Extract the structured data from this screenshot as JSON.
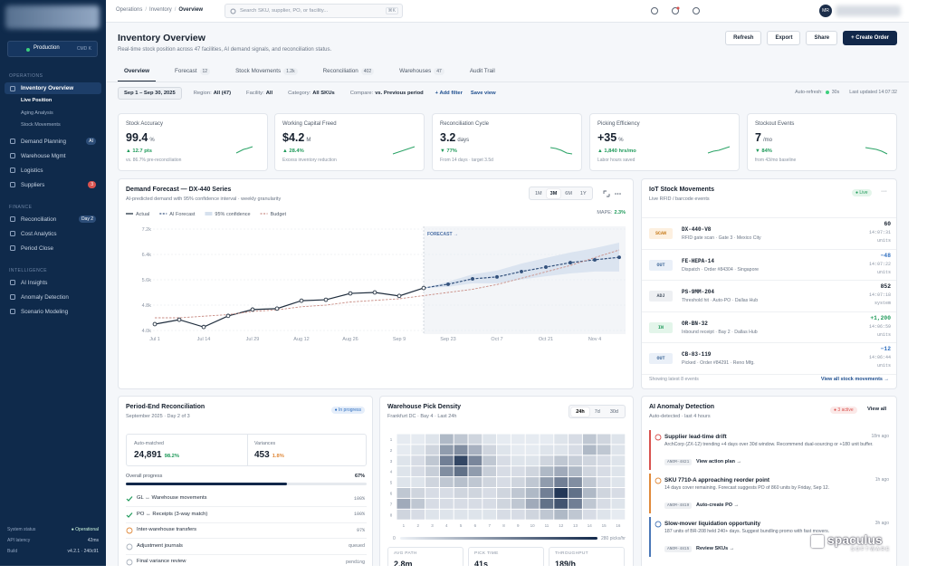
{
  "sidebar": {
    "env": "Production",
    "shortcut": "CMD K",
    "sections": [
      {
        "title": "OPERATIONS",
        "items": [
          {
            "label": "Inventory Overview",
            "sub": [
              "Live Position",
              "Aging Analysis",
              "Stock Movements"
            ]
          },
          {
            "label": "Demand Planning",
            "badge": "AI"
          },
          {
            "label": "Warehouse Mgmt"
          },
          {
            "label": "Logistics"
          },
          {
            "label": "Suppliers",
            "badge": 3
          }
        ]
      },
      {
        "title": "FINANCE",
        "items": [
          {
            "label": "Reconciliation",
            "badge": "Day 2"
          },
          {
            "label": "Cost Analytics"
          },
          {
            "label": "Period Close"
          }
        ]
      },
      {
        "title": "INTELLIGENCE",
        "items": [
          {
            "label": "AI Insights"
          },
          {
            "label": "Anomaly Detection"
          },
          {
            "label": "Scenario Modeling"
          }
        ]
      }
    ],
    "status": [
      [
        "System status",
        "● Operational"
      ],
      [
        "API latency",
        "42ms"
      ],
      [
        "Build",
        "v4.2.1 · 240c91"
      ]
    ]
  },
  "topbar": {
    "breadcrumb": [
      "Operations",
      "Inventory",
      "Overview"
    ],
    "separator": "/",
    "search": "Search SKU, supplier, PO, or facility...",
    "search_shortcut": "⌘K",
    "avatar": "MR"
  },
  "header": {
    "title": "Inventory Overview",
    "subtitle": "Real-time stock position across 47 facilities, AI demand signals, and reconciliation status.",
    "buttons": [
      "Refresh",
      "Export",
      "Share",
      "+ Create Order"
    ]
  },
  "tabs": [
    {
      "label": "Overview"
    },
    {
      "label": "Forecast",
      "count": 12
    },
    {
      "label": "Stock Movements",
      "count": "1.2k"
    },
    {
      "label": "Reconciliation",
      "count": 402
    },
    {
      "label": "Warehouses",
      "count": 47
    },
    {
      "label": "Audit Trail"
    }
  ],
  "filters": {
    "date": "Sep 1 – Sep 30, 2025",
    "chips": [
      [
        "Region:",
        "All (47)"
      ],
      [
        "Facility:",
        "All"
      ],
      [
        "Category:",
        "All SKUs"
      ],
      [
        "Compare:",
        "vs. Previous period"
      ]
    ],
    "add": "+ Add filter",
    "save": "Save view",
    "auto_refresh": "Auto-refresh:",
    "refresh_interval": "30s",
    "updated": "Last updated 14:07:32"
  },
  "kpis": [
    {
      "label": "Stock Accuracy",
      "value": "99.4",
      "unit": "%",
      "delta": "▲ 12.7 pts",
      "note": "vs. 86.7% pre-reconciliation"
    },
    {
      "label": "Working Capital Freed",
      "value": "$4.2",
      "unit": "M",
      "delta": "▲ 28.4%",
      "note": "Excess inventory reduction"
    },
    {
      "label": "Reconciliation Cycle",
      "value": "3.2",
      "unit": "days",
      "delta": "▼ 77%",
      "note": "From 14 days · target 3.5d"
    },
    {
      "label": "Picking Efficiency",
      "value": "+35",
      "unit": "%",
      "delta": "▲ 1,840 hrs/mo",
      "note": "Labor hours saved"
    },
    {
      "label": "Stockout Events",
      "value": "7",
      "unit": "/mo",
      "delta": "▼ 84%",
      "note": "from 43/mo baseline"
    }
  ],
  "chart_data": [
    {
      "type": "line",
      "title": "Demand Forecast — DX-440 Series",
      "subtitle": "AI-predicted demand with 95% confidence interval · weekly granularity",
      "ranges": [
        "1M",
        "3M",
        "6M",
        "1Y"
      ],
      "active_range": "3M",
      "metric_label": "MAPE:",
      "metric_value": "2.3%",
      "forecast_label": "FORECAST →",
      "categories": [
        "Jul 1",
        null,
        "Jul 14",
        null,
        "Jul 29",
        null,
        "Aug 12",
        null,
        "Aug 26",
        null,
        "Sep 9",
        null,
        "Sep 23",
        null,
        "Oct 7",
        null,
        "Oct 21",
        null,
        "Nov 4",
        null
      ],
      "ylim": [
        4000,
        7200
      ],
      "yticks": [
        {
          "value": 7200,
          "label": "7.2k"
        },
        {
          "value": 6400,
          "label": "6.4k"
        },
        {
          "value": 5600,
          "label": "5.6k"
        },
        {
          "value": 4800,
          "label": "4.8k"
        },
        {
          "value": 4000,
          "label": "4.0k"
        }
      ],
      "grid": true,
      "series": [
        {
          "name": "Actual",
          "color": "#1f2d3d",
          "values": [
            4200,
            4340,
            4110,
            4460,
            4660,
            4690,
            4940,
            4970,
            5170,
            5200,
            5090,
            5340,
            null,
            null,
            null,
            null,
            null,
            null,
            null,
            null
          ]
        },
        {
          "name": "AI Forecast",
          "color": "#34527d",
          "dashed": true,
          "values": [
            null,
            null,
            null,
            null,
            null,
            null,
            null,
            null,
            null,
            null,
            null,
            5340,
            5460,
            5630,
            5690,
            5860,
            6000,
            6140,
            6230,
            6310
          ]
        },
        {
          "name": "95% confidence",
          "color": "#d6e1ee",
          "band": true,
          "upper": [
            null,
            null,
            null,
            null,
            null,
            null,
            null,
            null,
            null,
            null,
            null,
            5340,
            5540,
            5770,
            5890,
            6110,
            6290,
            6460,
            6600,
            6770
          ],
          "lower": [
            null,
            null,
            null,
            null,
            null,
            null,
            null,
            null,
            null,
            null,
            null,
            5340,
            5380,
            5490,
            5490,
            5610,
            5710,
            5800,
            5860,
            5860
          ]
        },
        {
          "name": "Budget",
          "color": "#c98e86",
          "dashed": true,
          "values": [
            4400,
            4400,
            4450,
            4500,
            4600,
            4650,
            4750,
            4800,
            4900,
            4950,
            5000,
            5100,
            5200,
            5300,
            5450,
            5650,
            5850,
            6050,
            6300,
            6540
          ]
        }
      ]
    },
    {
      "type": "heatmap",
      "title": "Warehouse Pick Density",
      "subtitle": "Frankfurt DC · Bay 4 · Last 24h",
      "ranges": [
        "24h",
        "7d",
        "30d"
      ],
      "active_range": "24h",
      "x": [
        1,
        2,
        3,
        4,
        5,
        6,
        7,
        8,
        9,
        10,
        11,
        12,
        13,
        14,
        15,
        16
      ],
      "y": [
        1,
        2,
        3,
        4,
        5,
        6,
        7,
        8
      ],
      "zlim": [
        0,
        280
      ],
      "colors": [
        "#eef2f7",
        "#13294b"
      ],
      "legend_min": "0",
      "legend_max": "280 picks/hr",
      "values": [
        [
          10,
          10,
          20,
          80,
          60,
          40,
          20,
          10,
          10,
          10,
          10,
          20,
          30,
          60,
          40,
          20
        ],
        [
          10,
          20,
          40,
          120,
          140,
          90,
          40,
          20,
          10,
          10,
          20,
          20,
          30,
          80,
          60,
          20
        ],
        [
          20,
          30,
          60,
          160,
          240,
          150,
          60,
          30,
          20,
          20,
          40,
          60,
          50,
          40,
          30,
          20
        ],
        [
          20,
          30,
          50,
          140,
          180,
          120,
          50,
          30,
          30,
          40,
          80,
          100,
          80,
          40,
          30,
          20
        ],
        [
          20,
          20,
          40,
          60,
          70,
          60,
          40,
          30,
          40,
          60,
          120,
          160,
          140,
          60,
          30,
          20
        ],
        [
          60,
          40,
          30,
          30,
          40,
          40,
          30,
          40,
          60,
          80,
          160,
          260,
          180,
          80,
          40,
          30
        ],
        [
          100,
          60,
          30,
          30,
          30,
          30,
          30,
          40,
          60,
          100,
          180,
          220,
          160,
          60,
          30,
          20
        ],
        [
          40,
          30,
          20,
          20,
          20,
          20,
          20,
          30,
          30,
          40,
          60,
          80,
          60,
          30,
          20,
          10
        ]
      ],
      "stats": [
        {
          "label": "AVG PATH",
          "value": "2.8m"
        },
        {
          "label": "PICK TIME",
          "value": "41s"
        },
        {
          "label": "THROUGHPUT",
          "value": "189/h"
        }
      ]
    }
  ],
  "iot": {
    "title": "IoT Stock Movements",
    "subtitle": "Live RFID / barcode events",
    "live": "● Live",
    "more": "···",
    "rows": [
      {
        "type": "SCAN",
        "sku": "DX-440-V8",
        "desc": "RFID gate scan · Gate 3 · Mexico City",
        "qty": "60",
        "time": "14:07:31",
        "unit": "units"
      },
      {
        "type": "OUT",
        "sku": "FE-HEPA-14",
        "desc": "Dispatch · Order #84304 · Singapore",
        "qty": "−48",
        "time": "14:07:22",
        "unit": "units"
      },
      {
        "type": "ADJ",
        "sku": "PS-9MM-204",
        "desc": "Threshold hit · Auto-PO · Dallas Hub",
        "qty": "852",
        "time": "14:07:18",
        "unit": "system"
      },
      {
        "type": "IN",
        "sku": "OR-BN-32",
        "desc": "Inbound receipt · Bay 2 · Dallas Hub",
        "qty": "+1,200",
        "time": "14:06:59",
        "unit": "units"
      },
      {
        "type": "OUT",
        "sku": "CB-83-119",
        "desc": "Picked · Order #84291 · Reno Mfg.",
        "qty": "−12",
        "time": "14:06:44",
        "unit": "units"
      }
    ],
    "footer": "Showing latest 8 events",
    "link": "View all stock movements →"
  },
  "reconciliation": {
    "title": "Period-End Reconciliation",
    "subtitle": "September 2025 · Day 2 of 3",
    "status": "● In progress",
    "matched_label": "Auto-matched",
    "matched": "24,891",
    "matched_pct": "98.2%",
    "var_label": "Variances",
    "variances": "453",
    "var_pct": "1.8%",
    "progress_label": "Overall progress",
    "progress": 67,
    "progress_text": "67%",
    "steps": [
      {
        "label": "GL ↔ Warehouse movements",
        "state": "done",
        "value": "100%"
      },
      {
        "label": "PO ↔ Receipts (3-way match)",
        "state": "done",
        "value": "100%"
      },
      {
        "label": "Inter-warehouse transfers",
        "state": "running",
        "value": "97%"
      },
      {
        "label": "Adjustment journals",
        "state": "todo",
        "value": "queued"
      },
      {
        "label": "Final variance review",
        "state": "todo",
        "value": "pending"
      }
    ]
  },
  "anomalies": {
    "title": "AI Anomaly Detection",
    "subtitle": "Auto-detected · last 4 hours",
    "badge": "● 3 active",
    "link": "View all",
    "items": [
      {
        "title": "Supplier lead-time drift",
        "desc": "ArchCorp (ZX-12) trending +4 days over 30d window. Recommend dual-sourcing or +180 unit buffer.",
        "id": "ANOM-4821",
        "action": "View action plan →",
        "time": "18m ago",
        "color": "#d9534f"
      },
      {
        "title": "SKU 7710-A approaching reorder point",
        "desc": "14 days cover remaining. Forecast suggests PO of 860 units by Friday, Sep 12.",
        "id": "ANOM-4819",
        "action": "Auto-create PO →",
        "time": "1h ago",
        "color": "#e08a3c"
      },
      {
        "title": "Slow-mover liquidation opportunity",
        "desc": "187 units of BR-208 held 240+ days. Suggest bundling promo with fast movers.",
        "id": "ANOM-4815",
        "action": "Review SKUs →",
        "time": "3h ago",
        "color": "#4a78b8"
      }
    ]
  },
  "watermark": {
    "brand": "spaculus",
    "tag": "SOFTWARE"
  }
}
